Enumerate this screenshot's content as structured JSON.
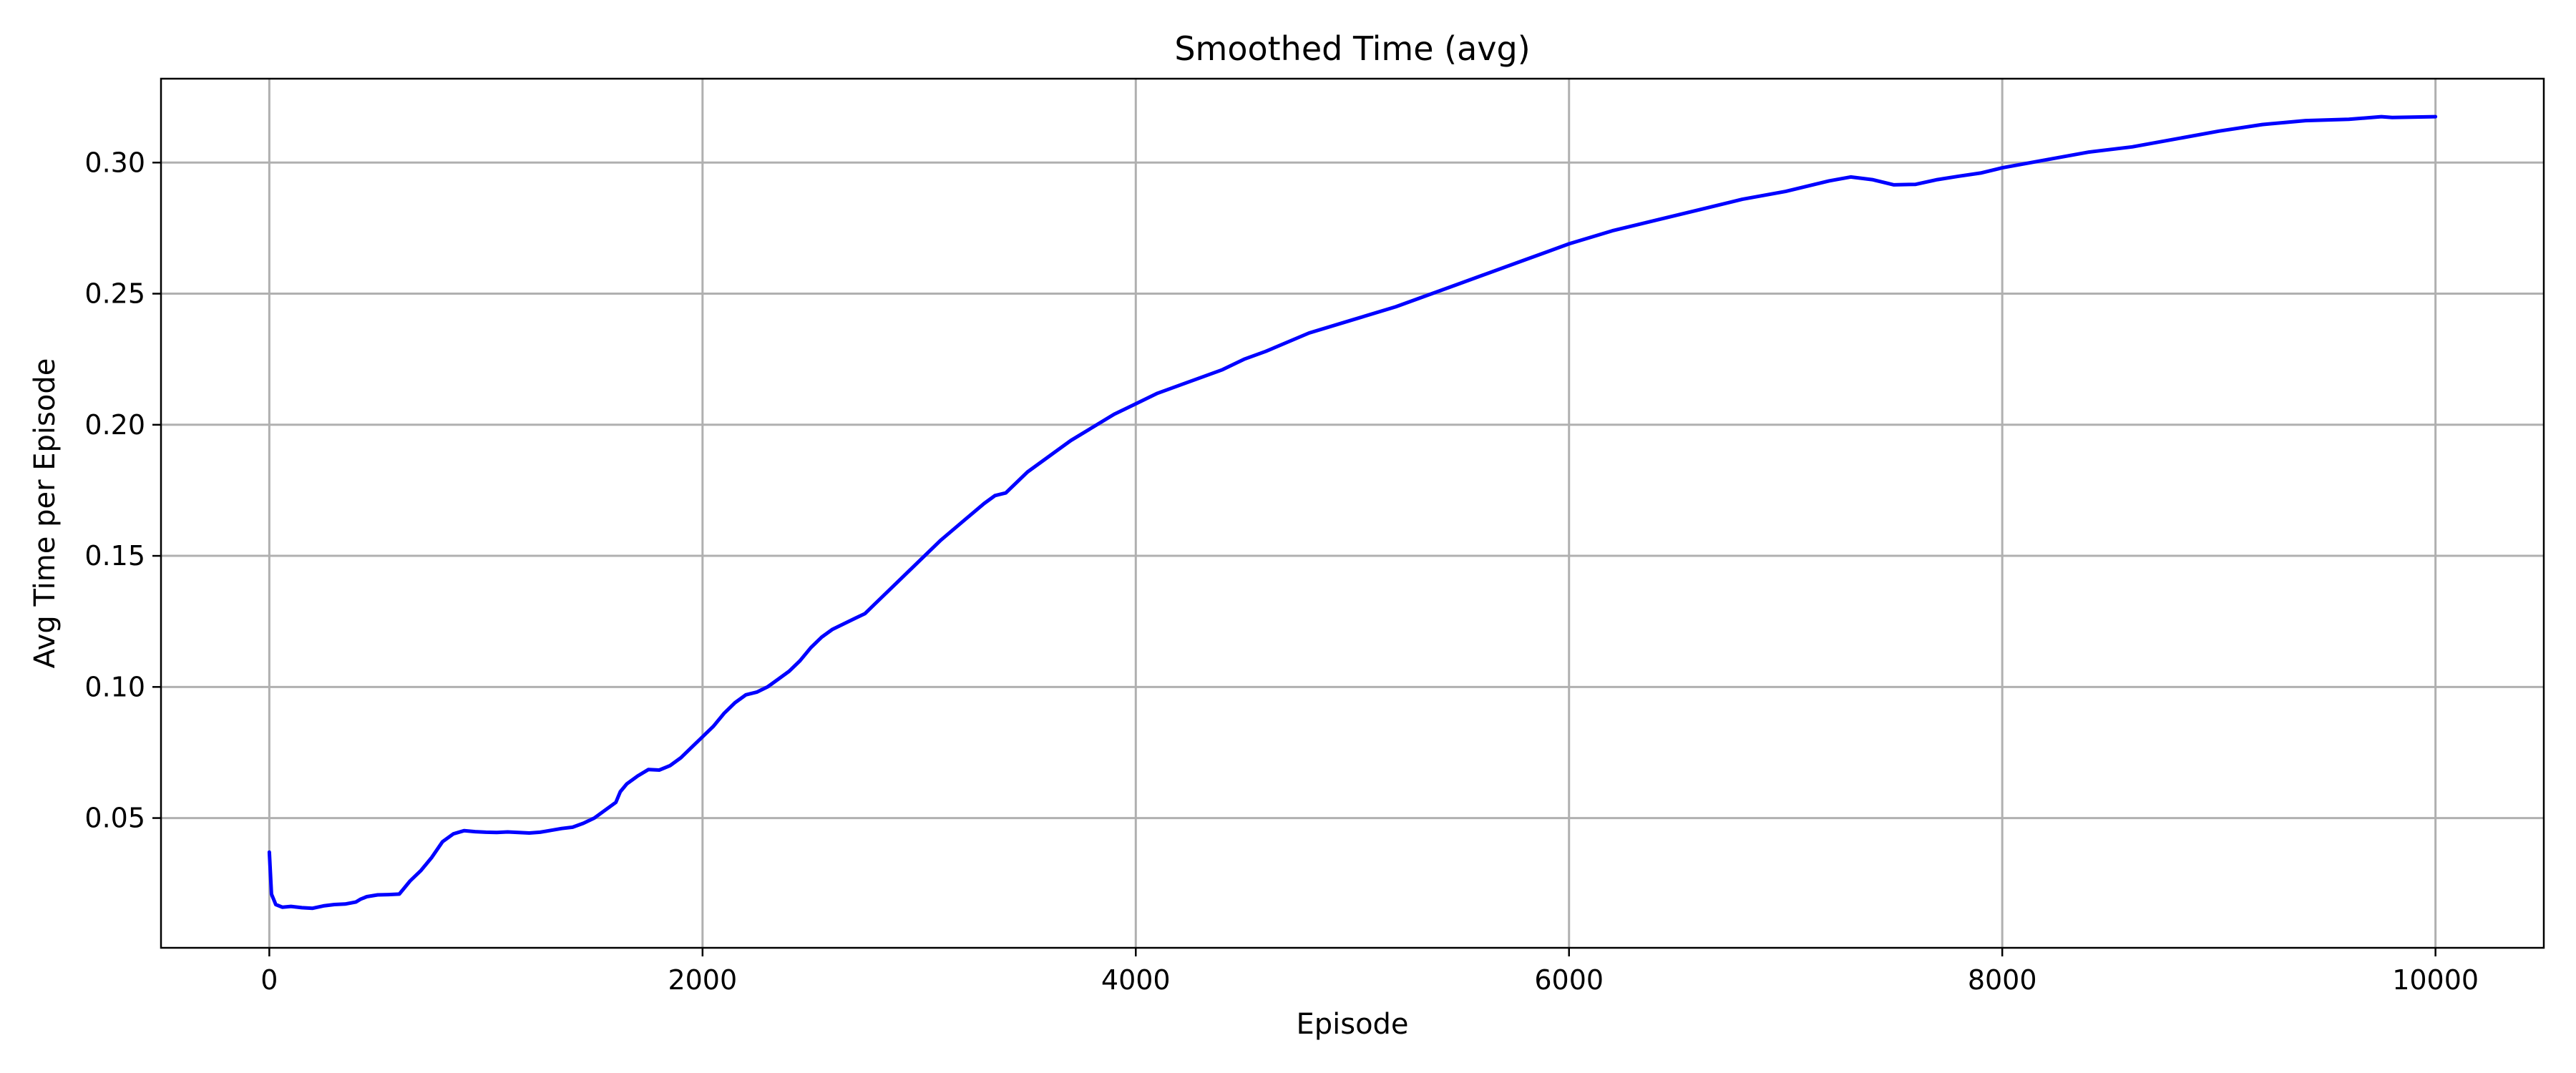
{
  "chart_data": {
    "type": "line",
    "title": "Smoothed Time (avg)",
    "xlabel": "Episode",
    "ylabel": "Avg Time per Episode",
    "xlim": [
      -500,
      10500
    ],
    "ylim": [
      0.0005,
      0.332
    ],
    "x_ticks": [
      0,
      2000,
      4000,
      6000,
      8000,
      10000
    ],
    "x_tick_labels": [
      "0",
      "2000",
      "4000",
      "6000",
      "8000",
      "10000"
    ],
    "y_ticks": [
      0.05,
      0.1,
      0.15,
      0.2,
      0.25,
      0.3
    ],
    "y_tick_labels": [
      "0.05",
      "0.10",
      "0.15",
      "0.20",
      "0.25",
      "0.30"
    ],
    "grid": true,
    "legend": "none",
    "series": [
      {
        "color": "#0000ff",
        "x": [
          0,
          10,
          30,
          60,
          100,
          150,
          200,
          250,
          300,
          350,
          400,
          420,
          450,
          500,
          550,
          600,
          620,
          650,
          700,
          750,
          800,
          850,
          900,
          950,
          1000,
          1050,
          1100,
          1150,
          1200,
          1250,
          1300,
          1350,
          1400,
          1450,
          1500,
          1550,
          1600,
          1620,
          1650,
          1700,
          1750,
          1800,
          1850,
          1900,
          1950,
          2000,
          2050,
          2100,
          2150,
          2200,
          2250,
          2300,
          2350,
          2400,
          2450,
          2500,
          2550,
          2600,
          2650,
          2700,
          2750,
          2800,
          2900,
          3000,
          3100,
          3200,
          3300,
          3350,
          3400,
          3500,
          3600,
          3700,
          3800,
          3900,
          4000,
          4100,
          4200,
          4300,
          4400,
          4500,
          4600,
          4800,
          5000,
          5200,
          5400,
          5600,
          5800,
          6000,
          6200,
          6400,
          6600,
          6800,
          7000,
          7200,
          7300,
          7400,
          7500,
          7600,
          7700,
          7800,
          7900,
          8000,
          8200,
          8400,
          8600,
          8800,
          9000,
          9200,
          9400,
          9600,
          9750,
          9800,
          10000
        ],
        "y": [
          0.037,
          0.021,
          0.017,
          0.016,
          0.0163,
          0.0158,
          0.0156,
          0.0165,
          0.017,
          0.0172,
          0.018,
          0.019,
          0.02,
          0.0207,
          0.0208,
          0.021,
          0.023,
          0.026,
          0.03,
          0.035,
          0.041,
          0.044,
          0.0452,
          0.0448,
          0.0446,
          0.0445,
          0.0447,
          0.0445,
          0.0443,
          0.0446,
          0.0453,
          0.046,
          0.0465,
          0.048,
          0.05,
          0.053,
          0.056,
          0.06,
          0.063,
          0.066,
          0.0685,
          0.0683,
          0.07,
          0.073,
          0.077,
          0.081,
          0.085,
          0.09,
          0.094,
          0.097,
          0.098,
          0.1,
          0.103,
          0.106,
          0.11,
          0.115,
          0.119,
          0.122,
          0.124,
          0.126,
          0.128,
          0.132,
          0.14,
          0.148,
          0.156,
          0.163,
          0.17,
          0.173,
          0.174,
          0.182,
          0.188,
          0.194,
          0.199,
          0.204,
          0.208,
          0.212,
          0.215,
          0.218,
          0.221,
          0.225,
          0.228,
          0.235,
          0.24,
          0.245,
          0.251,
          0.257,
          0.263,
          0.269,
          0.274,
          0.278,
          0.282,
          0.286,
          0.289,
          0.293,
          0.2945,
          0.2935,
          0.2915,
          0.2917,
          0.2935,
          0.2948,
          0.296,
          0.298,
          0.301,
          0.304,
          0.306,
          0.309,
          0.312,
          0.3145,
          0.316,
          0.3165,
          0.3175,
          0.3172,
          0.3175
        ]
      }
    ]
  }
}
